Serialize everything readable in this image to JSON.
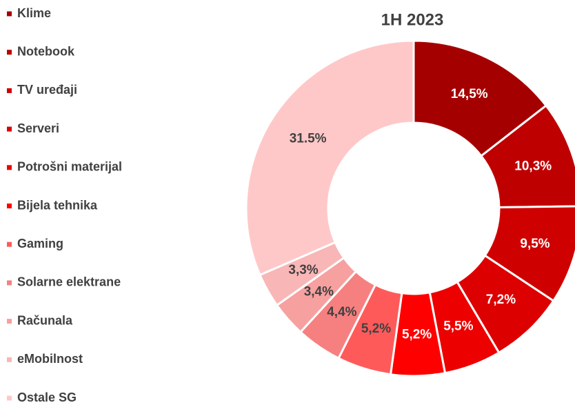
{
  "chart_data": {
    "type": "pie",
    "title": "1H 2023",
    "categories": [
      "Klime",
      "Notebook",
      "TV uređaji",
      "Serveri",
      "Potrošni materijal",
      "Bijela tehnika",
      "Gaming",
      "Solarne elektrane",
      "Računala",
      "eMobilnost",
      "Ostale SG"
    ],
    "values": [
      14.5,
      10.3,
      9.5,
      7.2,
      5.5,
      5.2,
      5.2,
      4.4,
      3.4,
      3.3,
      31.5
    ],
    "value_labels": [
      "14,5%",
      "10,3%",
      "9,5%",
      "7,2%",
      "5,5%",
      "5,2%",
      "5,2%",
      "4,4%",
      "3,4%",
      "3,3%",
      "31.5%"
    ],
    "colors": [
      "#a50000",
      "#bf0000",
      "#cf0000",
      "#dd0000",
      "#ec0000",
      "#ff0000",
      "#ff5a5a",
      "#f68080",
      "#f7a0a0",
      "#f9b6b6",
      "#ffc8c8"
    ],
    "donut": true
  }
}
